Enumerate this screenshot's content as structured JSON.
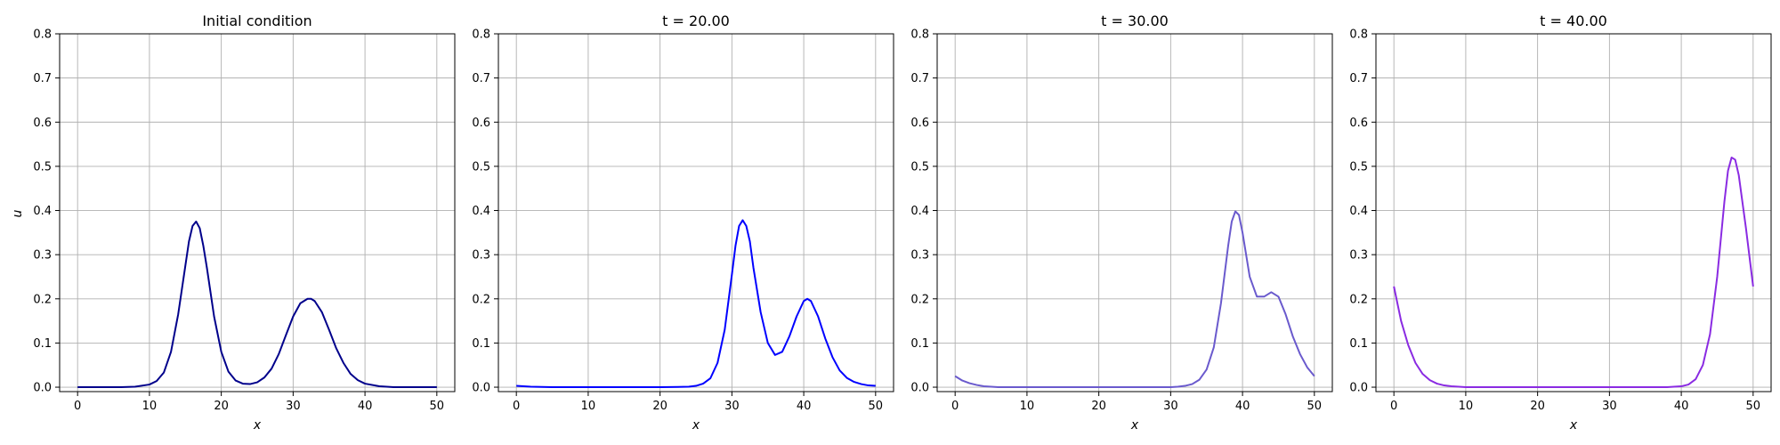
{
  "chart_data": [
    {
      "type": "line",
      "title": "Initial condition",
      "xlabel": "x",
      "ylabel": "u",
      "xlim": [
        -2.5,
        52.5
      ],
      "ylim": [
        -0.01,
        0.8
      ],
      "xticks": [
        0,
        10,
        20,
        30,
        40,
        50
      ],
      "yticks": [
        0.0,
        0.1,
        0.2,
        0.3,
        0.4,
        0.5,
        0.6,
        0.7,
        0.8
      ],
      "grid": true,
      "color": "#00008b",
      "x": [
        0,
        2,
        4,
        6,
        8,
        10,
        11,
        12,
        13,
        14,
        15,
        15.5,
        16,
        16.5,
        17,
        17.5,
        18,
        19,
        20,
        21,
        22,
        23,
        24,
        25,
        26,
        27,
        28,
        29,
        30,
        31,
        32,
        32.5,
        33,
        34,
        35,
        36,
        37,
        38,
        39,
        40,
        42,
        44,
        46,
        48,
        50
      ],
      "y": [
        0.0,
        0.0,
        0.0,
        0.0,
        0.001,
        0.006,
        0.014,
        0.033,
        0.08,
        0.165,
        0.275,
        0.33,
        0.365,
        0.375,
        0.36,
        0.32,
        0.27,
        0.16,
        0.08,
        0.035,
        0.015,
        0.008,
        0.007,
        0.011,
        0.022,
        0.042,
        0.075,
        0.118,
        0.16,
        0.19,
        0.2,
        0.2,
        0.195,
        0.17,
        0.13,
        0.088,
        0.055,
        0.03,
        0.016,
        0.008,
        0.002,
        0.0,
        0.0,
        0.0,
        0.0
      ]
    },
    {
      "type": "line",
      "title": "t = 20.00",
      "xlabel": "x",
      "ylabel": "",
      "xlim": [
        -2.5,
        52.5
      ],
      "ylim": [
        -0.01,
        0.8
      ],
      "xticks": [
        0,
        10,
        20,
        30,
        40,
        50
      ],
      "yticks": [
        0.0,
        0.1,
        0.2,
        0.3,
        0.4,
        0.5,
        0.6,
        0.7,
        0.8
      ],
      "grid": true,
      "color": "#0000ff",
      "x": [
        0,
        2,
        5,
        10,
        15,
        20,
        24,
        25,
        26,
        27,
        28,
        29,
        30,
        30.5,
        31,
        31.5,
        32,
        32.5,
        33,
        34,
        35,
        36,
        37,
        38,
        39,
        40,
        40.5,
        41,
        42,
        43,
        44,
        45,
        46,
        47,
        48,
        49,
        50
      ],
      "y": [
        0.003,
        0.001,
        0.0,
        0.0,
        0.0,
        0.0,
        0.001,
        0.003,
        0.008,
        0.02,
        0.055,
        0.13,
        0.255,
        0.32,
        0.365,
        0.378,
        0.365,
        0.33,
        0.27,
        0.17,
        0.1,
        0.073,
        0.08,
        0.115,
        0.16,
        0.195,
        0.2,
        0.195,
        0.16,
        0.11,
        0.068,
        0.038,
        0.021,
        0.012,
        0.007,
        0.004,
        0.003
      ]
    },
    {
      "type": "line",
      "title": "t = 30.00",
      "xlabel": "x",
      "ylabel": "",
      "xlim": [
        -2.5,
        52.5
      ],
      "ylim": [
        -0.01,
        0.8
      ],
      "xticks": [
        0,
        10,
        20,
        30,
        40,
        50
      ],
      "yticks": [
        0.0,
        0.1,
        0.2,
        0.3,
        0.4,
        0.5,
        0.6,
        0.7,
        0.8
      ],
      "grid": true,
      "color": "#6a5acd",
      "x": [
        0,
        1,
        2,
        3,
        4,
        6,
        10,
        20,
        30,
        31,
        32,
        33,
        34,
        35,
        36,
        37,
        38,
        38.5,
        39,
        39.5,
        40,
        41,
        42,
        43,
        44,
        45,
        46,
        47,
        48,
        49,
        50
      ],
      "y": [
        0.025,
        0.015,
        0.009,
        0.005,
        0.002,
        0.0,
        0.0,
        0.0,
        0.0,
        0.001,
        0.003,
        0.007,
        0.017,
        0.04,
        0.09,
        0.19,
        0.32,
        0.375,
        0.398,
        0.39,
        0.35,
        0.25,
        0.205,
        0.205,
        0.215,
        0.205,
        0.165,
        0.115,
        0.075,
        0.045,
        0.025
      ]
    },
    {
      "type": "line",
      "title": "t = 40.00",
      "xlabel": "x",
      "ylabel": "",
      "xlim": [
        -2.5,
        52.5
      ],
      "ylim": [
        -0.01,
        0.8
      ],
      "xticks": [
        0,
        10,
        20,
        30,
        40,
        50
      ],
      "yticks": [
        0.0,
        0.1,
        0.2,
        0.3,
        0.4,
        0.5,
        0.6,
        0.7,
        0.8
      ],
      "grid": true,
      "color": "#8a2be2",
      "x": [
        0,
        1,
        2,
        3,
        4,
        5,
        6,
        7,
        8,
        10,
        15,
        20,
        30,
        38,
        40,
        41,
        42,
        43,
        44,
        45,
        46,
        46.5,
        47,
        47.5,
        48,
        49,
        50
      ],
      "y": [
        0.228,
        0.15,
        0.095,
        0.055,
        0.03,
        0.016,
        0.008,
        0.004,
        0.002,
        0.0,
        0.0,
        0.0,
        0.0,
        0.0,
        0.002,
        0.006,
        0.018,
        0.05,
        0.12,
        0.25,
        0.42,
        0.49,
        0.52,
        0.515,
        0.48,
        0.36,
        0.228
      ]
    }
  ]
}
